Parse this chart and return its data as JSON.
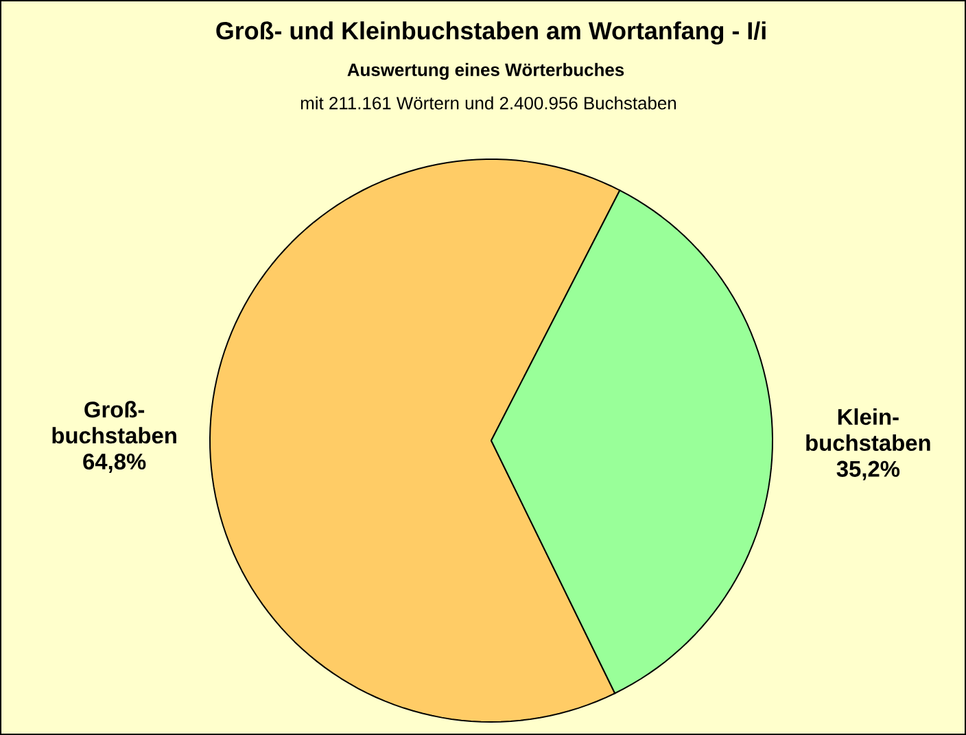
{
  "chart_data": {
    "type": "pie",
    "title": "Groß- und  Kleinbuchstaben am Wortanfang - I/i",
    "subtitle": "Auswertung eines Wörterbuches",
    "annotations": [
      "mit 211.161 Wörtern und 2.400.956 Buchstaben"
    ],
    "categories": [
      "Groß-buchstaben",
      "Klein-buchstaben"
    ],
    "values": [
      64.8,
      35.2
    ],
    "colors": [
      "#ffcc66",
      "#99ff99"
    ],
    "value_labels": [
      "64,8%",
      "35,2%"
    ]
  }
}
